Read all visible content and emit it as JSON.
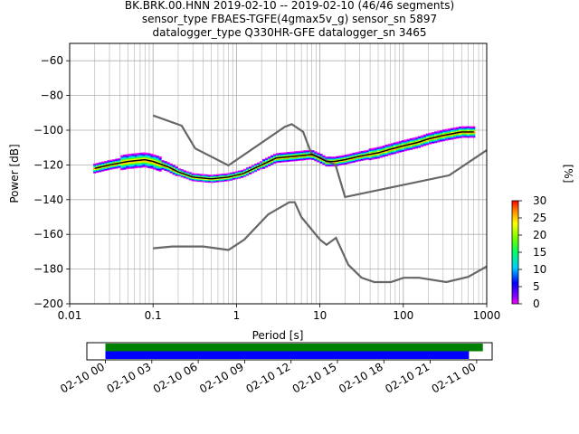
{
  "title_lines": [
    "BK.BRK.00.HNN   2019-02-10 -- 2019-02-10  (46/46 segments)",
    "sensor_type FBAES-TGFE(4gmax5v_g) sensor_sn 5897",
    "datalogger_type Q330HR-GFE datalogger_sn 3465"
  ],
  "chart_data": [
    {
      "type": "heatmap",
      "title": "BK.BRK.00.HNN   2019-02-10 -- 2019-02-10  (46/46 segments)",
      "xlabel": "Period [s]",
      "ylabel": "Power [dB]",
      "xscale": "log",
      "xlim": [
        0.01,
        1000
      ],
      "ylim": [
        -200,
        -50
      ],
      "x_ticks": [
        "0.01",
        "0.1",
        "1",
        "10",
        "100",
        "1000"
      ],
      "y_ticks": [
        "−60",
        "−80",
        "−100",
        "−120",
        "−140",
        "−160",
        "−180",
        "−200"
      ],
      "y_tick_values": [
        -60,
        -80,
        -100,
        -120,
        -140,
        -160,
        -180,
        -200
      ],
      "grid": true,
      "colorbar": {
        "label": "[%]",
        "range": [
          0,
          30
        ],
        "ticks": [
          "0",
          "5",
          "10",
          "15",
          "20",
          "25",
          "30"
        ],
        "tick_values": [
          0,
          5,
          10,
          15,
          20,
          25,
          30
        ]
      },
      "series": [
        {
          "name": "",
          "role": "noise_model_high",
          "x": [
            0.1,
            0.22,
            0.32,
            0.8,
            3.8,
            4.6,
            6.3,
            7.9,
            15.4,
            20,
            354.8,
            1000
          ],
          "y": [
            -91.5,
            -97.4,
            -110.5,
            -120.3,
            -98.0,
            -96.5,
            -101.0,
            -113.5,
            -120.0,
            -138.5,
            -126.0,
            -111.5
          ]
        },
        {
          "name": "",
          "role": "noise_model_low",
          "x": [
            0.1,
            0.17,
            0.4,
            0.8,
            1.24,
            2.4,
            4.3,
            5.0,
            6.0,
            10.0,
            12.0,
            15.6,
            21.9,
            31.6,
            45,
            70.8,
            101,
            154.4,
            328.4,
            600,
            1000
          ],
          "y": [
            -168,
            -167,
            -167,
            -169,
            -163,
            -148.5,
            -141.5,
            -141.5,
            -150,
            -163,
            -166,
            -162,
            -177.5,
            -185,
            -187.5,
            -187.5,
            -185,
            -185,
            -187.5,
            -184.5,
            -178.5
          ]
        },
        {
          "name": "",
          "role": "mode",
          "x": [
            0.02,
            0.03,
            0.05,
            0.08,
            0.1,
            0.15,
            0.2,
            0.3,
            0.5,
            0.8,
            1.2,
            2,
            3,
            5,
            8,
            10,
            12,
            15,
            20,
            30,
            50,
            70,
            100,
            150,
            200,
            300,
            500,
            700
          ],
          "y": [
            -122,
            -120,
            -118,
            -117,
            -118,
            -121,
            -124,
            -127,
            -128,
            -127,
            -125,
            -120,
            -116,
            -115,
            -114,
            -116,
            -118,
            -118,
            -117,
            -115,
            -113,
            -111,
            -109,
            -107,
            -105,
            -103,
            -101,
            -101
          ]
        }
      ]
    },
    {
      "type": "timeline",
      "x_ticks": [
        "02-10 00",
        "02-10 03",
        "02-10 06",
        "02-10 09",
        "02-10 12",
        "02-10 15",
        "02-10 18",
        "02-10 21",
        "02-11 00"
      ],
      "x_tick_hours": [
        0,
        3,
        6,
        9,
        12,
        15,
        18,
        21,
        24
      ],
      "xlim_hours": [
        -1.2,
        25.0
      ],
      "bars": [
        {
          "name": "",
          "color": "#008000",
          "start_hour": 0,
          "end_hour": 24.4
        },
        {
          "name": "",
          "color": "#0000ff",
          "start_hour": 0,
          "end_hour": 23.5
        }
      ]
    }
  ]
}
